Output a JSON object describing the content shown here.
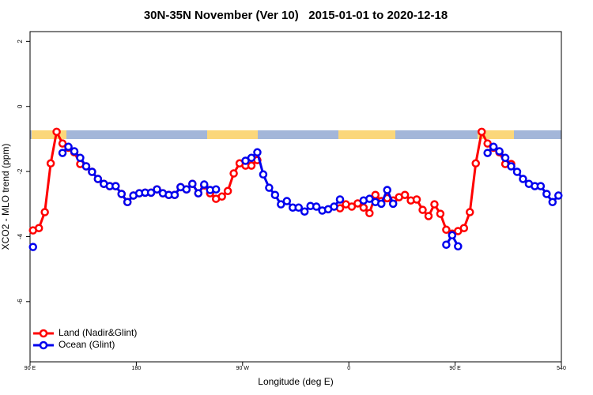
{
  "chart_data": {
    "type": "line",
    "title": "30N-35N November (Ver 10)   2015-01-01 to 2020-12-18",
    "xlabel": "Longitude (deg E)",
    "ylabel": "XCO2 - MLO trend (ppm)",
    "x": [
      92.5,
      97.5,
      102.5,
      107.5,
      112.5,
      117.5,
      122.5,
      127.5,
      132.5,
      137.5,
      142.5,
      147.5,
      152.5,
      157.5,
      162.5,
      167.5,
      172.5,
      177.5,
      182.5,
      187.5,
      192.5,
      197.5,
      202.5,
      207.5,
      212.5,
      217.5,
      222.5,
      227.5,
      232.5,
      237.5,
      242.5,
      247.5,
      252.5,
      257.5,
      262.5,
      267.5,
      272.5,
      277.5,
      282.5,
      287.5,
      292.5,
      297.5,
      302.5,
      307.5,
      312.5,
      317.5,
      322.5,
      327.5,
      332.5,
      337.5,
      342.5,
      347.5,
      352.5,
      357.5,
      362.5,
      367.5,
      372.5,
      377.5,
      382.5,
      387.5,
      392.5,
      397.5,
      402.5,
      407.5,
      412.5,
      417.5,
      422.5,
      427.5,
      432.5,
      437.5,
      442.5,
      447.5,
      452.5,
      457.5,
      462.5,
      467.5,
      472.5,
      477.5,
      482.5,
      487.5,
      492.5,
      497.5,
      502.5,
      507.5,
      512.5,
      517.5,
      522.5,
      527.5,
      532.5,
      537.5
    ],
    "series": [
      {
        "name": "Land (Nadir&Glint)",
        "color": "#ff0000",
        "values": [
          -3.81,
          -3.74,
          -3.25,
          -1.75,
          -0.78,
          -1.14,
          -1.27,
          -1.41,
          -1.77,
          -1.84,
          -2.01,
          -2.23,
          -2.38,
          -2.45,
          -2.45,
          -2.69,
          -2.94,
          -2.74,
          -2.67,
          -2.65,
          -2.65,
          -2.55,
          -2.67,
          -2.72,
          -2.72,
          -2.48,
          -2.55,
          -2.38,
          -2.67,
          -2.43,
          -2.67,
          -2.84,
          -2.77,
          -2.6,
          -2.06,
          -1.75,
          -1.82,
          -1.82,
          -1.65,
          null,
          null,
          null,
          null,
          null,
          null,
          null,
          null,
          null,
          null,
          null,
          null,
          null,
          -3.13,
          -3.01,
          -3.08,
          -2.98,
          -3.11,
          -3.28,
          -2.72,
          -2.91,
          -2.82,
          -2.89,
          -2.79,
          -2.72,
          -2.89,
          -2.86,
          -3.18,
          -3.37,
          -3.01,
          -3.3,
          -3.79,
          -3.91,
          -3.83,
          -3.74,
          -3.25,
          -1.75,
          -0.78,
          -1.14,
          -1.27,
          -1.41,
          -1.77,
          -1.77,
          null,
          null,
          null,
          null,
          null,
          null,
          null,
          null
        ]
      },
      {
        "name": "Ocean (Glint)",
        "color": "#0000ee",
        "values": [
          -4.32,
          null,
          null,
          null,
          null,
          -1.43,
          -1.24,
          -1.38,
          -1.58,
          -1.84,
          -2.01,
          -2.23,
          -2.38,
          -2.45,
          -2.45,
          -2.69,
          -2.94,
          -2.74,
          -2.67,
          -2.65,
          -2.65,
          -2.55,
          -2.67,
          -2.72,
          -2.72,
          -2.48,
          -2.55,
          -2.38,
          -2.67,
          -2.4,
          -2.57,
          -2.55,
          null,
          null,
          null,
          null,
          -1.67,
          -1.58,
          -1.41,
          -2.09,
          -2.5,
          -2.72,
          -3.01,
          -2.91,
          -3.11,
          -3.11,
          -3.23,
          -3.06,
          -3.08,
          -3.2,
          -3.16,
          -3.08,
          -2.86,
          null,
          null,
          null,
          -2.89,
          -2.84,
          -2.94,
          -2.99,
          -2.57,
          -2.99,
          null,
          null,
          null,
          null,
          null,
          null,
          null,
          null,
          -4.25,
          -3.96,
          -4.3,
          null,
          null,
          null,
          null,
          -1.43,
          -1.24,
          -1.38,
          -1.58,
          -1.84,
          -2.01,
          -2.23,
          -2.38,
          -2.45,
          -2.45,
          -2.69,
          -2.94,
          -2.74
        ]
      }
    ],
    "xlim": [
      90,
      540
    ],
    "xticks": [
      {
        "value": 90,
        "label": "90 E"
      },
      180,
      {
        "value": 270,
        "label": "90 W"
      },
      {
        "value": 360,
        "label": "0"
      },
      {
        "value": 450,
        "label": "90 E"
      },
      540
    ],
    "ylim": [
      -7.85,
      2.3
    ],
    "yticks": [
      2,
      0,
      -2,
      -4,
      -6
    ],
    "legend": "bottom-left"
  }
}
